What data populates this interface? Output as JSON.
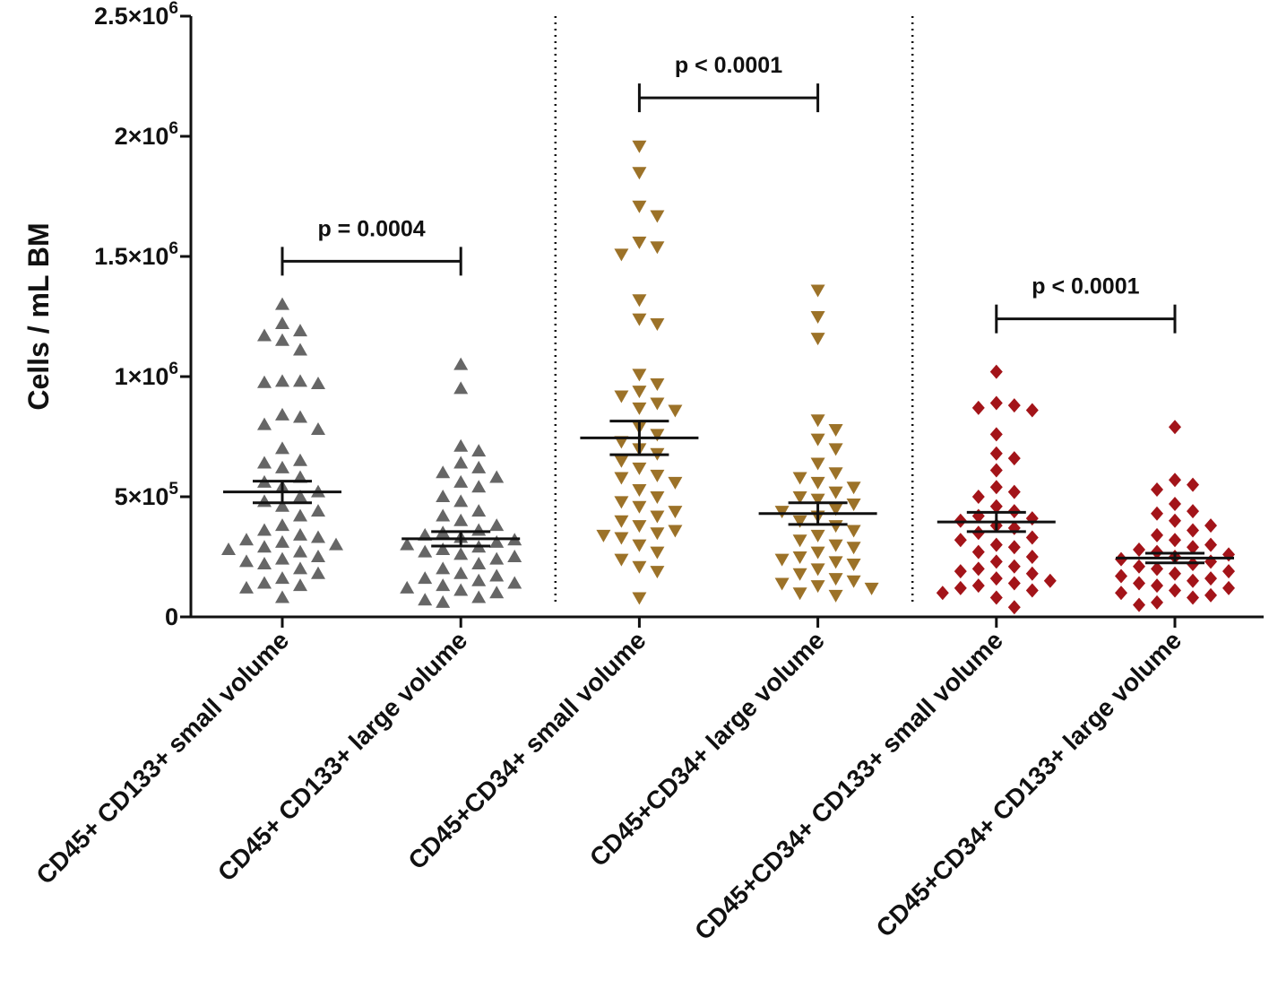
{
  "chart_data": {
    "type": "scatter",
    "ylabel": "Cells / mL BM",
    "ylim": [
      0,
      2500000
    ],
    "yticks": [
      {
        "value": 0,
        "label": "0",
        "exp": ""
      },
      {
        "value": 500000,
        "label": "5×10",
        "exp": "5"
      },
      {
        "value": 1000000,
        "label": "1×10",
        "exp": "6"
      },
      {
        "value": 1500000,
        "label": "1.5×10",
        "exp": "6"
      },
      {
        "value": 2000000,
        "label": "2×10",
        "exp": "6"
      },
      {
        "value": 2500000,
        "label": "2.5×10",
        "exp": "6"
      }
    ],
    "categories": [
      "CD45+ CD133+ small volume",
      "CD45+ CD133+ large volume",
      "CD45+CD34+ small volume",
      "CD45+CD34+  large volume",
      "CD45+CD34+ CD133+ small volume",
      "CD45+CD34+ CD133+ large volume"
    ],
    "colors": [
      "#666666",
      "#666666",
      "#9c7228",
      "#9c7228",
      "#a31419",
      "#a31419"
    ],
    "markers": [
      "triangle-up",
      "triangle-up",
      "triangle-down",
      "triangle-down",
      "diamond",
      "diamond"
    ],
    "means": [
      520000,
      325000,
      745000,
      430000,
      395000,
      245000
    ],
    "sem": [
      45000,
      30000,
      70000,
      45000,
      40000,
      20000
    ],
    "series": [
      {
        "name": "CD45+ CD133+ small volume",
        "values": [
          1300000,
          1220000,
          1190000,
          1170000,
          1150000,
          1110000,
          980000,
          975000,
          970000,
          980000,
          830000,
          840000,
          800000,
          780000,
          700000,
          650000,
          640000,
          620000,
          580000,
          560000,
          540000,
          520000,
          500000,
          480000,
          460000,
          440000,
          420000,
          380000,
          360000,
          340000,
          330000,
          320000,
          310000,
          300000,
          290000,
          280000,
          270000,
          250000,
          240000,
          230000,
          220000,
          200000,
          180000,
          160000,
          140000,
          130000,
          120000,
          80000
        ]
      },
      {
        "name": "CD45+ CD133+ large volume",
        "values": [
          1050000,
          950000,
          710000,
          690000,
          640000,
          620000,
          600000,
          580000,
          560000,
          540000,
          500000,
          480000,
          440000,
          420000,
          400000,
          380000,
          360000,
          350000,
          340000,
          330000,
          320000,
          310000,
          300000,
          290000,
          280000,
          270000,
          260000,
          250000,
          240000,
          220000,
          200000,
          180000,
          170000,
          160000,
          150000,
          140000,
          130000,
          120000,
          110000,
          100000,
          80000,
          70000,
          60000
        ]
      },
      {
        "name": "CD45+CD34+ small volume",
        "values": [
          1960000,
          1850000,
          1710000,
          1670000,
          1560000,
          1540000,
          1510000,
          1320000,
          1240000,
          1220000,
          1010000,
          970000,
          940000,
          920000,
          890000,
          870000,
          860000,
          790000,
          760000,
          730000,
          700000,
          680000,
          650000,
          620000,
          590000,
          580000,
          560000,
          530000,
          500000,
          480000,
          460000,
          440000,
          420000,
          400000,
          380000,
          360000,
          350000,
          340000,
          330000,
          300000,
          270000,
          240000,
          210000,
          190000,
          80000
        ]
      },
      {
        "name": "CD45+CD34+  large volume",
        "values": [
          1360000,
          1250000,
          1160000,
          820000,
          780000,
          740000,
          700000,
          640000,
          600000,
          580000,
          560000,
          540000,
          520000,
          500000,
          490000,
          470000,
          450000,
          440000,
          420000,
          400000,
          380000,
          360000,
          340000,
          320000,
          300000,
          290000,
          270000,
          250000,
          240000,
          230000,
          220000,
          200000,
          180000,
          160000,
          150000,
          140000,
          130000,
          120000,
          100000,
          90000
        ]
      },
      {
        "name": "CD45+CD34+ CD133+ small volume",
        "values": [
          1020000,
          890000,
          880000,
          870000,
          860000,
          760000,
          680000,
          660000,
          610000,
          540000,
          520000,
          500000,
          460000,
          440000,
          420000,
          410000,
          400000,
          380000,
          370000,
          350000,
          330000,
          320000,
          300000,
          290000,
          270000,
          250000,
          230000,
          210000,
          200000,
          190000,
          180000,
          160000,
          150000,
          140000,
          130000,
          120000,
          110000,
          100000,
          80000,
          40000
        ]
      },
      {
        "name": "CD45+CD34+ CD133+ large volume",
        "values": [
          790000,
          570000,
          550000,
          530000,
          470000,
          440000,
          430000,
          400000,
          380000,
          360000,
          340000,
          320000,
          300000,
          290000,
          280000,
          270000,
          260000,
          250000,
          240000,
          230000,
          220000,
          210000,
          200000,
          190000,
          180000,
          170000,
          160000,
          150000,
          140000,
          130000,
          120000,
          110000,
          100000,
          90000,
          80000,
          60000,
          50000
        ]
      }
    ],
    "comparisons": [
      {
        "from": 0,
        "to": 1,
        "y": 1480000,
        "label": "p = 0.0004"
      },
      {
        "from": 2,
        "to": 3,
        "y": 2160000,
        "label": "p < 0.0001"
      },
      {
        "from": 4,
        "to": 5,
        "y": 1240000,
        "label": "p < 0.0001"
      }
    ],
    "group_separators": [
      1.5,
      3.5
    ]
  }
}
